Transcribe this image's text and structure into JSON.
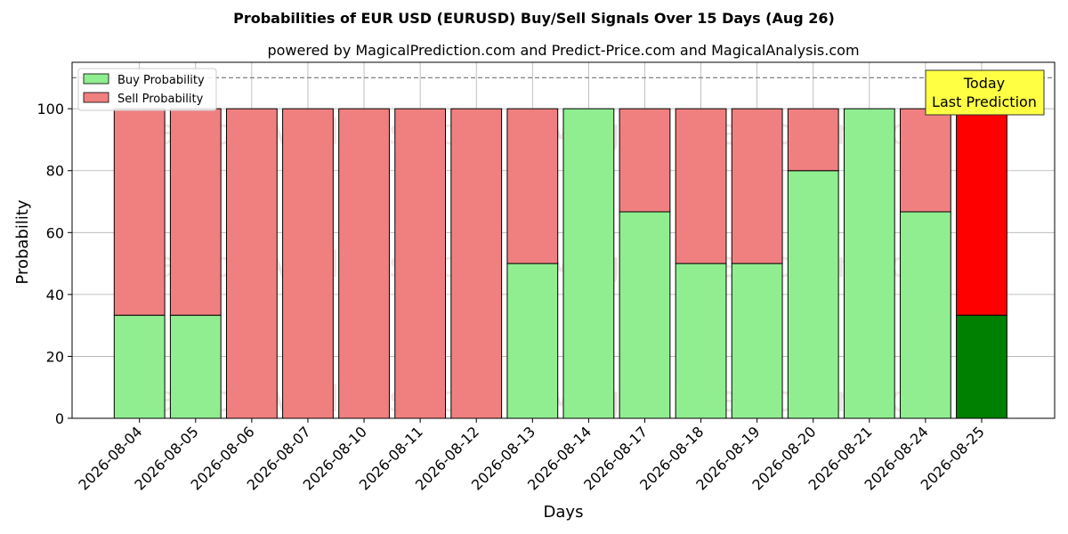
{
  "chart_data": {
    "type": "bar",
    "stacked": true,
    "title": "Probabilities of EUR USD (EURUSD) Buy/Sell Signals Over 15 Days (Aug 26)",
    "subtitle": "powered by MagicalPrediction.com and Predict-Price.com and MagicalAnalysis.com",
    "xlabel": "Days",
    "ylabel": "Probability",
    "ylim": [
      0,
      115
    ],
    "yticks": [
      0,
      20,
      40,
      60,
      80,
      100
    ],
    "reference_line": 110,
    "grid": true,
    "legend_position": "top-left",
    "categories": [
      "2026-08-04",
      "2026-08-05",
      "2026-08-06",
      "2026-08-07",
      "2026-08-10",
      "2026-08-11",
      "2026-08-12",
      "2026-08-13",
      "2026-08-14",
      "2026-08-17",
      "2026-08-18",
      "2026-08-19",
      "2026-08-20",
      "2026-08-21",
      "2026-08-24",
      "2026-08-25"
    ],
    "series": [
      {
        "name": "Buy Probability",
        "color": "#90ee90",
        "highlight_color": "#008000",
        "values": [
          33.3,
          33.3,
          0,
          0,
          0,
          0,
          0,
          50,
          100,
          66.7,
          50,
          50,
          80,
          100,
          66.7,
          33.3
        ]
      },
      {
        "name": "Sell Probability",
        "color": "#f08080",
        "highlight_color": "#ff0000",
        "values": [
          66.7,
          66.7,
          100,
          100,
          100,
          100,
          100,
          50,
          0,
          33.3,
          50,
          50,
          20,
          0,
          33.3,
          66.7
        ]
      }
    ],
    "highlight_index": 15,
    "annotation": {
      "lines": [
        "Today",
        "Last Prediction"
      ],
      "color": "#ffff44",
      "position": "top-right"
    },
    "watermark_text": [
      "MagicalAnalysis.com",
      "MagicalPrediction.com"
    ]
  }
}
